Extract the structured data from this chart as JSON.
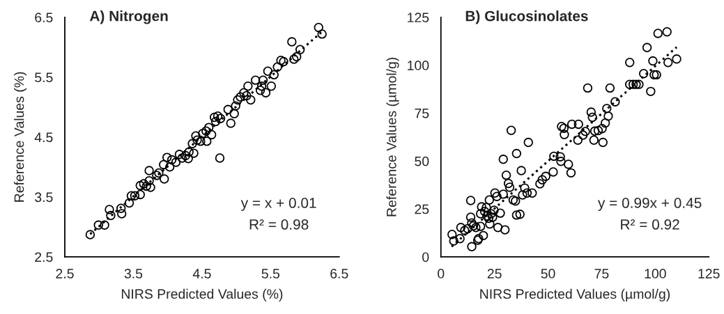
{
  "chart_data": [
    {
      "type": "scatter",
      "title": "A) Nitrogen",
      "xlabel": "NIRS Predicted Values (%)",
      "ylabel": "Reference Values (%)",
      "xlim": [
        2.5,
        6.5
      ],
      "ylim": [
        2.5,
        6.5
      ],
      "xticks": [
        2.5,
        3.5,
        4.5,
        5.5,
        6.5
      ],
      "yticks": [
        2.5,
        3.5,
        4.5,
        5.5,
        6.5
      ],
      "annotations": [
        "y = x + 0.01",
        "R² = 0.98"
      ],
      "series": [
        {
          "marker": "circle",
          "color": "#000000",
          "x": [
            2.87,
            2.99,
            3.08,
            3.15,
            3.17,
            3.32,
            3.33,
            3.44,
            3.47,
            3.52,
            3.6,
            3.6,
            3.65,
            3.69,
            3.73,
            3.75,
            3.73,
            3.84,
            3.87,
            3.95,
            3.94,
            3.99,
            4.03,
            4.06,
            4.12,
            4.17,
            4.21,
            4.26,
            4.3,
            4.31,
            4.36,
            4.38,
            4.41,
            4.43,
            4.48,
            4.51,
            4.56,
            4.57,
            4.6,
            4.64,
            4.68,
            4.7,
            4.76,
            4.73,
            4.77,
            4.88,
            4.92,
            4.97,
            4.99,
            5.02,
            5.06,
            5.11,
            5.15,
            5.17,
            5.21,
            5.28,
            5.35,
            5.37,
            5.39,
            5.43,
            5.46,
            5.51,
            5.55,
            5.6,
            5.65,
            5.69,
            5.81,
            5.84,
            5.88,
            5.93,
            6.2,
            6.25
          ],
          "values": [
            2.87,
            3.03,
            3.03,
            3.29,
            3.19,
            3.31,
            3.22,
            3.4,
            3.52,
            3.52,
            3.54,
            3.69,
            3.72,
            3.68,
            3.77,
            3.66,
            3.94,
            3.86,
            3.9,
            3.8,
            4.04,
            4.16,
            4.0,
            4.12,
            4.08,
            4.21,
            4.15,
            4.19,
            4.14,
            4.25,
            4.39,
            4.23,
            4.52,
            4.45,
            4.43,
            4.56,
            4.6,
            4.43,
            4.66,
            4.54,
            4.83,
            4.76,
            4.15,
            4.85,
            4.81,
            4.96,
            4.73,
            4.89,
            5.02,
            5.12,
            5.17,
            5.24,
            5.19,
            5.35,
            5.12,
            5.45,
            5.28,
            5.35,
            5.45,
            5.24,
            5.6,
            5.35,
            5.54,
            5.67,
            5.78,
            5.76,
            6.09,
            5.8,
            5.84,
            5.96,
            6.33,
            6.22
          ]
        },
        {
          "type": "line",
          "line_style": "dotted",
          "marker": "none",
          "color": "#000000",
          "x": [
            2.87,
            6.25
          ],
          "values": [
            2.88,
            6.26
          ]
        }
      ]
    },
    {
      "type": "scatter",
      "title": "B) Glucosinolates",
      "xlabel": "NIRS Predicted Values (µmol/g)",
      "ylabel": "Reference Values (µmol/g)",
      "xlim": [
        0,
        125
      ],
      "ylim": [
        0,
        125
      ],
      "xticks": [
        0,
        25,
        50,
        75,
        100,
        125
      ],
      "yticks": [
        0,
        25,
        50,
        75,
        100,
        125
      ],
      "annotations": [
        "y = 0.99x + 0.45",
        "R² = 0.92"
      ],
      "series": [
        {
          "marker": "circle",
          "color": "#000000",
          "x": [
            5.2,
            6.0,
            8.9,
            14.4,
            13.9,
            9.3,
            11.1,
            12.5,
            13.9,
            14.4,
            15.2,
            16.3,
            17.2,
            17.6,
            18.5,
            19.8,
            19.0,
            18.5,
            20.4,
            21.2,
            21.5,
            22.3,
            22.8,
            23.4,
            24.1,
            24.8,
            22.6,
            25.2,
            26.1,
            26.6,
            27.7,
            29.1,
            29.9,
            29.1,
            30.5,
            31.5,
            32.1,
            32.8,
            33.7,
            34.8,
            35.3,
            35.3,
            36.9,
            37.5,
            38.1,
            39.1,
            40.2,
            40.8,
            42.6,
            46.2,
            47.3,
            48.9,
            52.4,
            52.7,
            55.7,
            56.0,
            56.3,
            57.4,
            57.6,
            59.5,
            60.7,
            61.1,
            64.2,
            63.9,
            66.3,
            67.4,
            68.5,
            70.1,
            70.7,
            71.4,
            71.8,
            73.4,
            75.2,
            75.6,
            76.7,
            77.4,
            78.1,
            78.9,
            81.3,
            88.1,
            88.1,
            89.7,
            91.1,
            92.4,
            94.6,
            96.2,
            97.9,
            98.9,
            99.5,
            100.6,
            101.3,
            105.5,
            106.0,
            110.0
          ],
          "values": [
            11.7,
            8.3,
            9.5,
            5.3,
            29.4,
            15.3,
            13.8,
            14.7,
            20.7,
            17.7,
            16.2,
            15.3,
            8.7,
            9.5,
            15.9,
            11.1,
            26.1,
            22.5,
            23.7,
            25.8,
            21.3,
            20.1,
            17.1,
            22.5,
            20.7,
            24.3,
            29.7,
            33.3,
            31.5,
            15.3,
            22.8,
            32.7,
            14.1,
            50.9,
            42.6,
            38.3,
            36.3,
            66.0,
            29.7,
            29.1,
            53.9,
            21.8,
            22.2,
            45.0,
            32.3,
            35.9,
            33.3,
            59.7,
            33.3,
            38.1,
            40.2,
            42.0,
            44.3,
            52.5,
            52.2,
            49.8,
            68.0,
            67.1,
            63.8,
            48.3,
            43.8,
            69.2,
            69.2,
            60.9,
            63.5,
            65.4,
            88.1,
            75.5,
            72.8,
            60.9,
            65.6,
            65.9,
            66.9,
            59.7,
            69.8,
            77.4,
            73.4,
            88.1,
            80.9,
            101.4,
            90.0,
            90.0,
            90.0,
            90.0,
            95.6,
            109.2,
            86.3,
            102.2,
            95.0,
            95.0,
            116.6,
            117.4,
            101.4,
            103.2
          ]
        },
        {
          "type": "line",
          "line_style": "dotted",
          "marker": "none",
          "color": "#000000",
          "x": [
            5,
            110
          ],
          "values": [
            5.4,
            109.4
          ]
        }
      ]
    }
  ]
}
